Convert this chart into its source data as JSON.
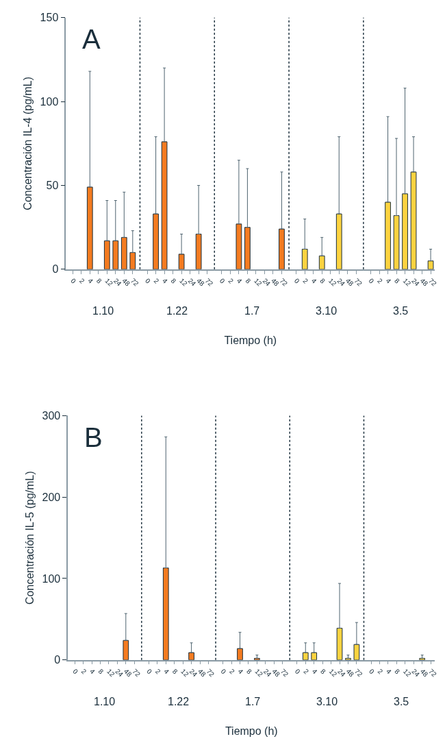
{
  "chart_data": [
    {
      "type": "bar",
      "xlabel": "Tiempo (h)",
      "ylabel": "Concentración IL-4 (pg/mL)",
      "annotations": [
        "A",
        "1.10",
        "1.22",
        "1.7",
        "3.10",
        "3.5"
      ],
      "categories": [
        "0",
        "2",
        "4",
        "8",
        "12",
        "24",
        "48",
        "72",
        "0",
        "2",
        "4",
        "8",
        "12",
        "24",
        "48",
        "72",
        "0",
        "2",
        "4",
        "8",
        "12",
        "24",
        "48",
        "72",
        "0",
        "2",
        "4",
        "8",
        "12",
        "24",
        "48",
        "72",
        "0",
        "2",
        "4",
        "8",
        "12",
        "24",
        "48",
        "72"
      ],
      "values": [
        null,
        null,
        49,
        null,
        17,
        17,
        19,
        10,
        null,
        33,
        76,
        null,
        9,
        null,
        21,
        null,
        null,
        null,
        27,
        25,
        null,
        null,
        null,
        24,
        null,
        12,
        null,
        8,
        null,
        33,
        null,
        null,
        null,
        null,
        40,
        32,
        45,
        58,
        null,
        5
      ],
      "errors": [
        null,
        null,
        [
          49,
          118
        ],
        null,
        [
          17,
          41
        ],
        [
          17,
          41
        ],
        [
          19,
          46
        ],
        [
          10,
          23
        ],
        null,
        [
          33,
          79
        ],
        [
          76,
          120
        ],
        null,
        [
          9,
          21
        ],
        null,
        [
          21,
          50
        ],
        null,
        null,
        null,
        [
          27,
          65
        ],
        [
          25,
          60
        ],
        null,
        null,
        null,
        [
          24,
          58
        ],
        null,
        [
          12,
          30
        ],
        null,
        [
          8,
          19
        ],
        null,
        [
          33,
          79
        ],
        null,
        null,
        null,
        null,
        [
          40,
          91
        ],
        [
          32,
          78
        ],
        [
          45,
          108
        ],
        [
          58,
          79
        ],
        null,
        [
          5,
          12
        ]
      ],
      "colors": [
        "#f47b20",
        "#f47b20",
        "#f47b20",
        "#f47b20",
        "#f47b20",
        "#f47b20",
        "#f47b20",
        "#f47b20",
        "#f47b20",
        "#f47b20",
        "#f47b20",
        "#f47b20",
        "#f47b20",
        "#f47b20",
        "#f47b20",
        "#f47b20",
        "#f47b20",
        "#f47b20",
        "#f47b20",
        "#f47b20",
        "#f47b20",
        "#f47b20",
        "#f47b20",
        "#f47b20",
        "#fdd340",
        "#fdd340",
        "#fdd340",
        "#fdd340",
        "#fdd340",
        "#fdd340",
        "#fdd340",
        "#fdd340",
        "#fdd340",
        "#fdd340",
        "#fdd340",
        "#fdd340",
        "#fdd340",
        "#fdd340",
        "#fdd340",
        "#fdd340"
      ],
      "ylim": [
        0,
        150
      ],
      "yticks": [
        0,
        50,
        100,
        150
      ],
      "ref_lines": [
        {
          "axis": "x",
          "line_style": "dotted",
          "color": "#1a2e3b"
        },
        {
          "axis": "x",
          "line_style": "dotted",
          "color": "#1a2e3b"
        },
        {
          "axis": "x",
          "line_style": "dotted",
          "color": "#1a2e3b"
        },
        {
          "axis": "x",
          "line_style": "dotted",
          "color": "#1a2e3b"
        }
      ]
    },
    {
      "type": "bar",
      "xlabel": "Tiempo (h)",
      "ylabel": "Concentración IL-5 (pg/mL)",
      "annotations": [
        "B",
        "1.10",
        "1.22",
        "1.7",
        "3.10",
        "3.5"
      ],
      "categories": [
        "0",
        "2",
        "4",
        "8",
        "12",
        "24",
        "48",
        "72",
        "0",
        "2",
        "4",
        "8",
        "12",
        "24",
        "48",
        "72",
        "0",
        "2",
        "4",
        "8",
        "12",
        "24",
        "48",
        "72",
        "0",
        "2",
        "4",
        "8",
        "12",
        "24",
        "48",
        "72",
        "0",
        "2",
        "4",
        "8",
        "12",
        "24",
        "48",
        "72"
      ],
      "values": [
        null,
        null,
        null,
        null,
        null,
        null,
        24,
        null,
        null,
        null,
        113,
        null,
        null,
        9,
        null,
        null,
        null,
        null,
        14,
        null,
        2,
        null,
        null,
        null,
        null,
        9,
        9,
        null,
        null,
        39,
        2,
        19,
        null,
        null,
        null,
        null,
        null,
        null,
        2,
        null
      ],
      "errors": [
        null,
        null,
        null,
        null,
        null,
        null,
        [
          24,
          57
        ],
        null,
        null,
        null,
        [
          113,
          274
        ],
        null,
        null,
        [
          9,
          21
        ],
        null,
        null,
        null,
        null,
        [
          14,
          34
        ],
        null,
        [
          2,
          6
        ],
        null,
        null,
        null,
        null,
        [
          9,
          21
        ],
        [
          9,
          21
        ],
        null,
        null,
        [
          39,
          94
        ],
        [
          2,
          6
        ],
        [
          19,
          46
        ],
        null,
        null,
        null,
        null,
        null,
        null,
        [
          2,
          6
        ],
        null
      ],
      "colors": [
        "#f47b20",
        "#f47b20",
        "#f47b20",
        "#f47b20",
        "#f47b20",
        "#f47b20",
        "#f47b20",
        "#f47b20",
        "#f47b20",
        "#f47b20",
        "#f47b20",
        "#f47b20",
        "#f47b20",
        "#f47b20",
        "#f47b20",
        "#f47b20",
        "#f47b20",
        "#f47b20",
        "#f47b20",
        "#f47b20",
        "#f47b20",
        "#f47b20",
        "#f47b20",
        "#f47b20",
        "#fdd340",
        "#fdd340",
        "#fdd340",
        "#fdd340",
        "#fdd340",
        "#fdd340",
        "#fdd340",
        "#fdd340",
        "#fdd340",
        "#fdd340",
        "#fdd340",
        "#fdd340",
        "#fdd340",
        "#fdd340",
        "#fdd340",
        "#fdd340"
      ],
      "ylim": [
        0,
        300
      ],
      "yticks": [
        0,
        100,
        200,
        300
      ],
      "ref_lines": [
        {
          "axis": "x",
          "line_style": "dotted",
          "color": "#1a2e3b"
        },
        {
          "axis": "x",
          "line_style": "dotted",
          "color": "#1a2e3b"
        },
        {
          "axis": "x",
          "line_style": "dotted",
          "color": "#1a2e3b"
        },
        {
          "axis": "x",
          "line_style": "dotted",
          "color": "#1a2e3b"
        }
      ]
    }
  ]
}
